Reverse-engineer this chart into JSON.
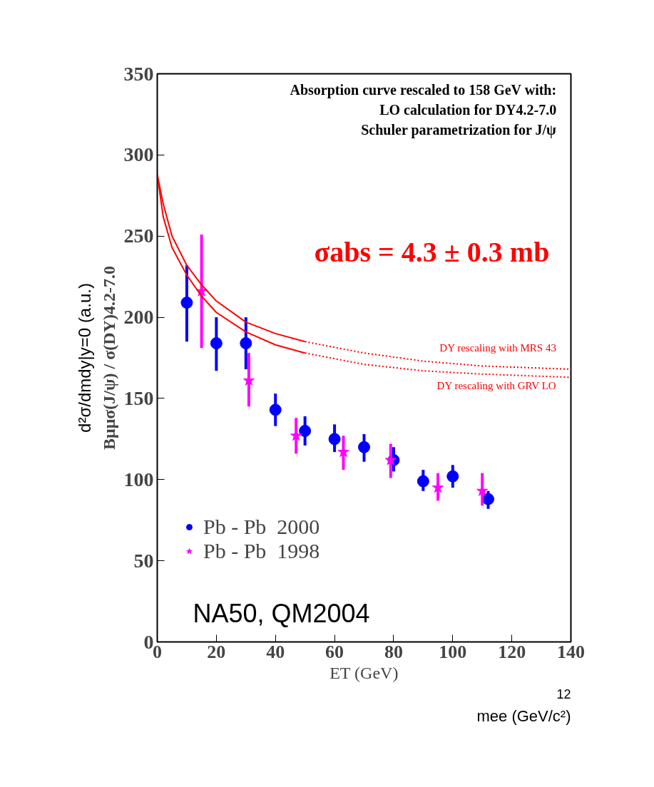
{
  "chart_data": {
    "type": "scatter",
    "xlabel": "ET (GeV)",
    "ylabel": "Bμμσ(J/ψ) / σ(DY)4.2-7.0",
    "xlim": [
      0,
      140
    ],
    "ylim": [
      0,
      350
    ],
    "xticks": [
      0,
      20,
      40,
      60,
      80,
      100,
      120,
      140
    ],
    "yticks": [
      0,
      50,
      100,
      150,
      200,
      250,
      300,
      350
    ],
    "grid": false,
    "legend": "bottom left",
    "series": [
      {
        "name": "Pb - Pb  2000",
        "color": "#0000ff",
        "marker": "circle",
        "x": [
          10,
          20,
          30,
          40,
          50,
          60,
          70,
          80,
          90,
          100,
          112
        ],
        "values": [
          209,
          184,
          184,
          143,
          130,
          125,
          120,
          112,
          99,
          102,
          88
        ],
        "errors": [
          [
            185,
            232
          ],
          [
            167,
            200
          ],
          [
            168,
            200
          ],
          [
            133,
            153
          ],
          [
            121,
            139
          ],
          [
            117,
            134
          ],
          [
            111,
            128
          ],
          [
            105,
            120
          ],
          [
            93,
            106
          ],
          [
            95,
            109
          ],
          [
            82,
            93
          ]
        ]
      },
      {
        "name": "Pb - Pb  1998",
        "color": "#ff00ff",
        "marker": "star",
        "x": [
          15,
          31,
          47,
          63,
          79,
          95,
          110
        ],
        "values": [
          216,
          161,
          127,
          117,
          112,
          95,
          93
        ],
        "errors": [
          [
            181,
            251
          ],
          [
            145,
            178
          ],
          [
            116,
            138
          ],
          [
            106,
            127
          ],
          [
            101,
            122
          ],
          [
            87,
            104
          ],
          [
            84,
            104
          ]
        ]
      },
      {
        "type": "line",
        "color": "#ff0000",
        "line_style": "solid",
        "x": [
          0,
          2,
          5,
          10,
          15,
          20,
          30,
          40,
          50
        ],
        "values": [
          288,
          270,
          250,
          232,
          220,
          210,
          197,
          190,
          185
        ]
      },
      {
        "type": "line",
        "color": "#ff0000",
        "line_style": "dotted",
        "x": [
          50,
          70,
          90,
          110,
          140
        ],
        "values": [
          185,
          178,
          173,
          170,
          168
        ]
      },
      {
        "type": "line",
        "color": "#ff0000",
        "line_style": "solid",
        "x": [
          0,
          2,
          5,
          10,
          15,
          20,
          30,
          40,
          50
        ],
        "values": [
          288,
          262,
          243,
          226,
          213,
          203,
          191,
          183,
          178
        ]
      },
      {
        "type": "line",
        "color": "#ff0000",
        "line_style": "dotted",
        "x": [
          50,
          70,
          90,
          110,
          140
        ],
        "values": [
          178,
          171,
          167,
          165,
          163
        ]
      }
    ],
    "annotations": [
      "Absorption curve rescaled to 158 GeV with:",
      "LO calculation for DY4.2-7.0",
      "Schuler parametrization for J/ψ",
      "σabs = 4.3 ± 0.3 mb",
      "NA50, QM2004",
      "DY rescaling with MRS 43",
      "DY rescaling with GRV LO",
      "d²σ/dmdy|y=0 (a.u.)",
      "12",
      "mee (GeV/c²)"
    ]
  }
}
